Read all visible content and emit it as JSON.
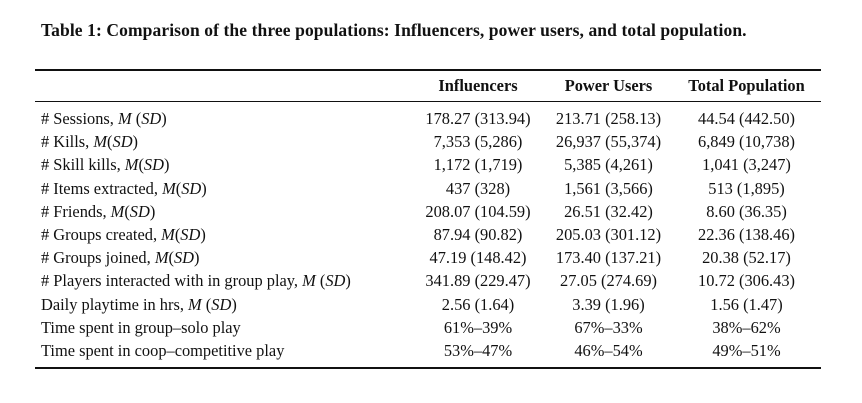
{
  "caption": "Table 1: Comparison of the three populations: Influencers, power users, and total population.",
  "columns": [
    "",
    "Influencers",
    "Power Users",
    "Total Population"
  ],
  "rows": [
    {
      "label": "# Sessions, ",
      "stat": "M",
      "stat_tail": " (",
      "sd": "SD",
      "end": ")",
      "values": [
        "178.27 (313.94)",
        "213.71 (258.13)",
        "44.54 (442.50)"
      ]
    },
    {
      "label": "# Kills, ",
      "stat": "M",
      "stat_tail": "(",
      "sd": "SD",
      "end": ")",
      "values": [
        "7,353 (5,286)",
        "26,937 (55,374)",
        "6,849 (10,738)"
      ]
    },
    {
      "label": "# Skill kills, ",
      "stat": "M",
      "stat_tail": "(",
      "sd": "SD",
      "end": ")",
      "values": [
        "1,172 (1,719)",
        "5,385 (4,261)",
        "1,041 (3,247)"
      ]
    },
    {
      "label": "# Items extracted, ",
      "stat": "M",
      "stat_tail": "(",
      "sd": "SD",
      "end": ")",
      "values": [
        "437 (328)",
        "1,561 (3,566)",
        "513 (1,895)"
      ]
    },
    {
      "label": "# Friends, ",
      "stat": "M",
      "stat_tail": "(",
      "sd": "SD",
      "end": ")",
      "values": [
        "208.07 (104.59)",
        "26.51 (32.42)",
        "8.60 (36.35)"
      ]
    },
    {
      "label": "# Groups created, ",
      "stat": "M",
      "stat_tail": "(",
      "sd": "SD",
      "end": ")",
      "values": [
        "87.94 (90.82)",
        "205.03 (301.12)",
        "22.36 (138.46)"
      ]
    },
    {
      "label": "# Groups joined, ",
      "stat": "M",
      "stat_tail": "(",
      "sd": "SD",
      "end": ")",
      "values": [
        "47.19 (148.42)",
        "173.40 (137.21)",
        "20.38 (52.17)"
      ]
    },
    {
      "label": "# Players interacted with in group play, ",
      "stat": "M",
      "stat_tail": " (",
      "sd": "SD",
      "end": ")",
      "values": [
        "341.89 (229.47)",
        "27.05 (274.69)",
        "10.72 (306.43)"
      ]
    },
    {
      "label": "Daily playtime in hrs, ",
      "stat": "M",
      "stat_tail": " (",
      "sd": "SD",
      "end": ")",
      "values": [
        "2.56 (1.64)",
        "3.39 (1.96)",
        "1.56 (1.47)"
      ]
    },
    {
      "label": "Time spent in group–solo play",
      "stat": "",
      "stat_tail": "",
      "sd": "",
      "end": "",
      "values": [
        "61%–39%",
        "67%–33%",
        "38%–62%"
      ]
    },
    {
      "label": "Time spent in coop–competitive play",
      "stat": "",
      "stat_tail": "",
      "sd": "",
      "end": "",
      "values": [
        "53%–47%",
        "46%–54%",
        "49%–51%"
      ]
    }
  ]
}
